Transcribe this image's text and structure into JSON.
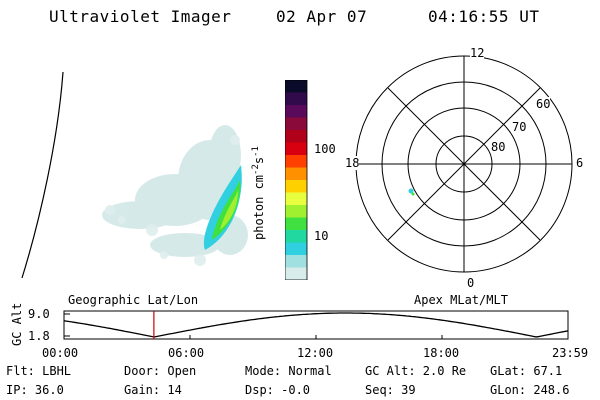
{
  "header": {
    "instrument": "Ultraviolet Imager",
    "date": "02 Apr 07",
    "time": "04:16:55 UT"
  },
  "colorbar": {
    "label": "photon cm",
    "label_sup1": "-2",
    "label_mid": "s",
    "label_sup2": "-1",
    "ticks": [
      "100",
      "10"
    ],
    "colors": [
      "#0a0a2a",
      "#300a4a",
      "#5a0a5a",
      "#8a0a3a",
      "#b0001a",
      "#d80010",
      "#ff4000",
      "#ff9000",
      "#ffd000",
      "#e8ff40",
      "#a0f030",
      "#40e040",
      "#20d8a0",
      "#30d0e0",
      "#a0e0e0",
      "#d8ecec"
    ]
  },
  "polar": {
    "mlt_labels": {
      "top": "12",
      "right": "6",
      "bottom": "0",
      "left": "18"
    },
    "lat_labels": [
      "60",
      "70",
      "80"
    ]
  },
  "timeline": {
    "left_title": "Geographic Lat/Lon",
    "right_title": "Apex MLat/MLT",
    "axis_label": "GC Alt",
    "y_ticks": [
      "9.0",
      "1.8"
    ],
    "x_ticks": [
      "00:00",
      "06:00",
      "12:00",
      "18:00",
      "23:59"
    ],
    "marker_time_hours": 4.28,
    "marker_color": "#cc0000"
  },
  "status": {
    "filter": "Flt: LBHL",
    "ip": "IP: 36.0",
    "door": "Door: Open",
    "gain": "Gain: 14",
    "mode": "Mode: Normal",
    "dsp": "Dsp:  -0.0",
    "gc_alt": "GC Alt: 2.0 Re",
    "seq": "Seq: 39",
    "glat": "GLat:  67.1",
    "glon": "GLon: 248.6"
  }
}
